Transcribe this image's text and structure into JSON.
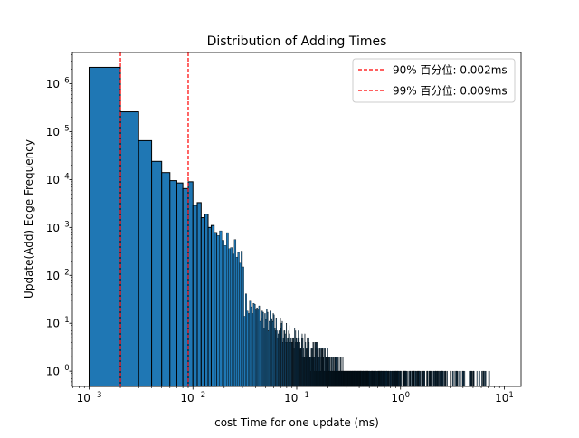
{
  "chart_data": {
    "type": "bar",
    "title": "Distribution of Adding Times",
    "xlabel": "cost Time for one update (ms)",
    "ylabel": "Update(Add) Edge Frequency",
    "xscale": "log",
    "yscale": "log",
    "xlim": [
      0.00069,
      14.5
    ],
    "ylim": [
      0.48,
      4500000
    ],
    "x_ticks": [
      {
        "value": 0.001,
        "base": "10",
        "exp": "−3"
      },
      {
        "value": 0.01,
        "base": "10",
        "exp": "−2"
      },
      {
        "value": 0.1,
        "base": "10",
        "exp": "−1"
      },
      {
        "value": 1,
        "base": "10",
        "exp": "0"
      },
      {
        "value": 10,
        "base": "10",
        "exp": "1"
      }
    ],
    "y_ticks": [
      {
        "value": 1,
        "base": "10",
        "exp": "0"
      },
      {
        "value": 10,
        "base": "10",
        "exp": "1"
      },
      {
        "value": 100,
        "base": "10",
        "exp": "2"
      },
      {
        "value": 1000,
        "base": "10",
        "exp": "3"
      },
      {
        "value": 10000,
        "base": "10",
        "exp": "4"
      },
      {
        "value": 100000,
        "base": "10",
        "exp": "5"
      },
      {
        "value": 1000000,
        "base": "10",
        "exp": "6"
      }
    ],
    "bin_width_ms": 0.001,
    "bin_start_ms": 0.001,
    "bar_color": "#1f77b4",
    "edge_color": "#000000",
    "head_counts": [
      2200000,
      260000,
      65000,
      24000,
      14000,
      9500,
      8500,
      6500,
      9000,
      2900,
      3300,
      1600,
      1900,
      1000,
      1100,
      780,
      680,
      850,
      540,
      420,
      780,
      360,
      380,
      280,
      560,
      240,
      300,
      180,
      320,
      150
    ],
    "tail_decay": {
      "amplitude": 0.12,
      "exponent": -1.55,
      "noise_log10": 0.26,
      "max_ms": 7.2,
      "seed": 7
    },
    "vlines": [
      {
        "x": 0.002,
        "color": "#ff0000",
        "style": "dashed",
        "label": "90% 百分位: 0.002ms"
      },
      {
        "x": 0.009,
        "color": "#ff0000",
        "style": "dashed",
        "label": "99% 百分位: 0.009ms"
      }
    ],
    "legend_position": "top-right"
  }
}
